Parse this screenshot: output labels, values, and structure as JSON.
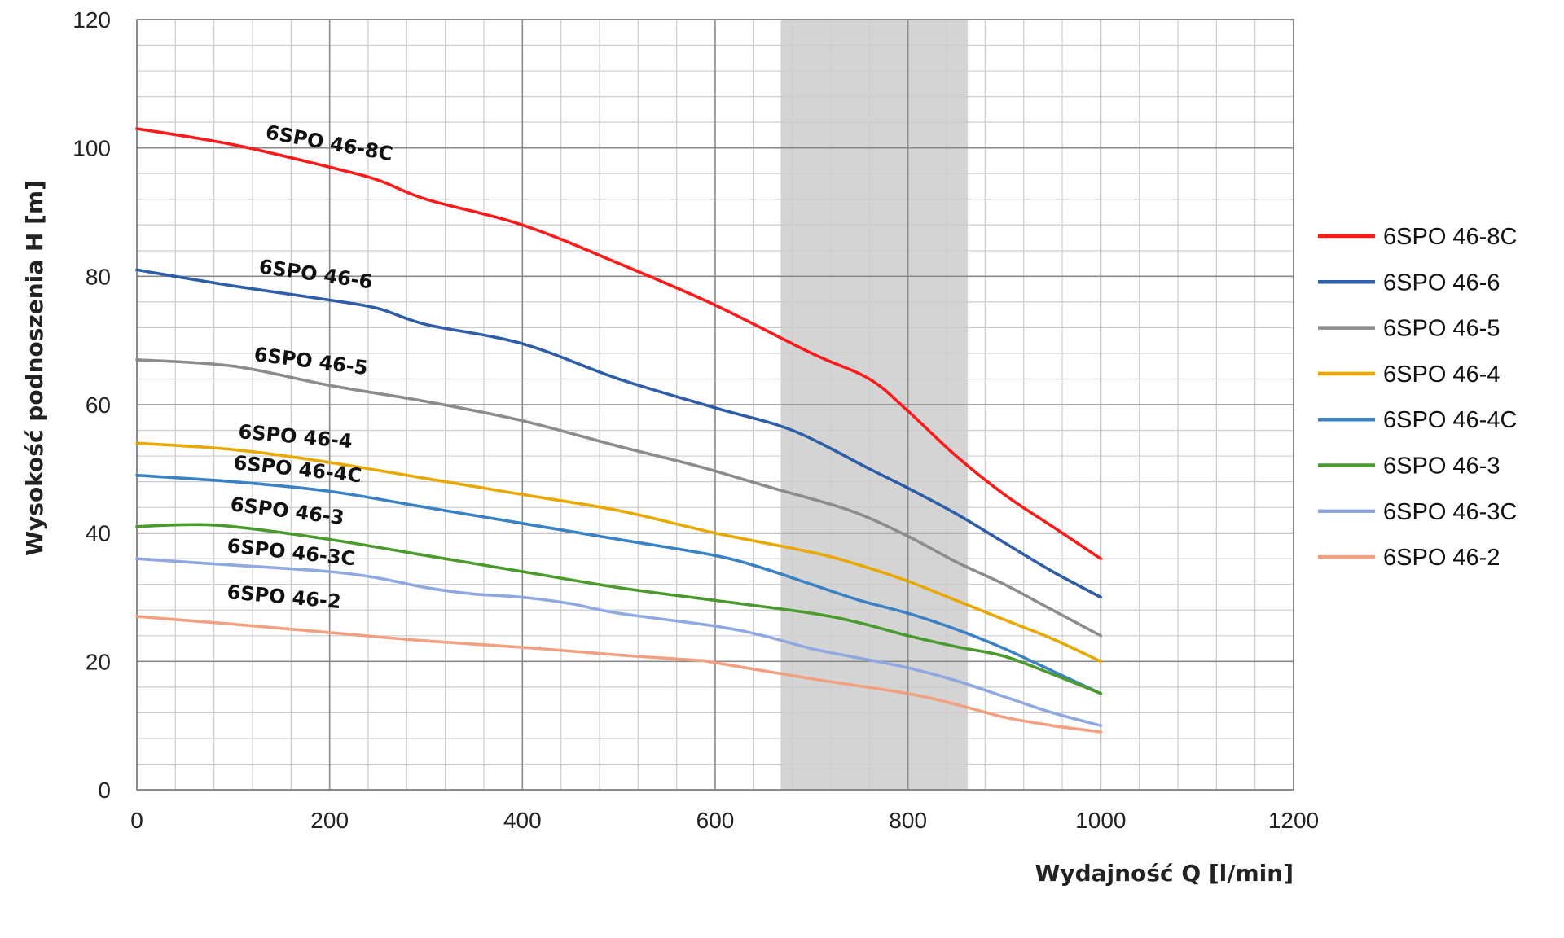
{
  "chart_data": {
    "type": "line",
    "title": "",
    "xlabel": "Wydajność Q [l/min]",
    "ylabel": "Wysokość podnoszenia H [m]",
    "xlim": [
      0,
      1200
    ],
    "ylim": [
      0,
      120
    ],
    "xticks": [
      "0",
      "200",
      "400",
      "600",
      "800",
      "1000",
      "1200"
    ],
    "yticks": [
      "0",
      "20",
      "40",
      "60",
      "80",
      "100",
      "120"
    ],
    "grid": true,
    "legend_position": "right",
    "shaded_region": {
      "x_from": 668,
      "x_to": 862,
      "color": "#d4d4d4"
    },
    "series": [
      {
        "name": "6SPO 46-8C",
        "color": "#ff1a1a",
        "label": "6SPO 46-8C",
        "x": [
          0,
          100,
          200,
          250,
          300,
          400,
          500,
          600,
          700,
          760,
          800,
          850,
          900,
          950,
          1000
        ],
        "y": [
          103,
          100.5,
          97,
          95,
          92,
          88,
          82,
          75.5,
          68,
          64,
          59,
          52,
          46,
          41,
          36
        ]
      },
      {
        "name": "6SPO 46-6",
        "color": "#2f5ea8",
        "label": "6SPO 46-6",
        "x": [
          0,
          100,
          200,
          250,
          300,
          400,
          500,
          600,
          680,
          760,
          800,
          850,
          900,
          950,
          1000
        ],
        "y": [
          81,
          78.5,
          76.3,
          75,
          72.5,
          69.5,
          64,
          59.5,
          56,
          50,
          47,
          43,
          38.5,
          34,
          30
        ]
      },
      {
        "name": "6SPO 46-5",
        "color": "#8c8c8c",
        "label": "6SPO 46-5",
        "x": [
          0,
          100,
          200,
          300,
          400,
          500,
          580,
          660,
          740,
          800,
          850,
          900,
          950,
          1000
        ],
        "y": [
          67,
          66,
          63,
          60.5,
          57.5,
          53.5,
          50.5,
          47,
          43.5,
          39.5,
          35.5,
          32,
          28,
          24
        ]
      },
      {
        "name": "6SPO 46-4",
        "color": "#e8a800",
        "label": "6SPO 46-4",
        "x": [
          0,
          100,
          200,
          300,
          400,
          500,
          600,
          700,
          750,
          800,
          850,
          900,
          950,
          1000
        ],
        "y": [
          54,
          53,
          51,
          48.5,
          46,
          43.5,
          40,
          37,
          35,
          32.5,
          29.5,
          26.5,
          23.5,
          20
        ]
      },
      {
        "name": "6SPO 46-4C",
        "color": "#3b82c4",
        "label": "6SPO 46-4C",
        "x": [
          0,
          100,
          200,
          300,
          400,
          500,
          600,
          650,
          700,
          750,
          800,
          850,
          900,
          950,
          1000
        ],
        "y": [
          49,
          48,
          46.5,
          44,
          41.5,
          39,
          36.5,
          34.5,
          32,
          29.5,
          27.5,
          25,
          22,
          18.5,
          15
        ]
      },
      {
        "name": "6SPO 46-3",
        "color": "#4a9a2e",
        "label": "6SPO 46-3",
        "x": [
          0,
          50,
          100,
          200,
          300,
          400,
          500,
          600,
          700,
          750,
          800,
          850,
          900,
          950,
          1000
        ],
        "y": [
          41,
          41.3,
          41,
          39,
          36.5,
          34,
          31.5,
          29.5,
          27.5,
          26,
          24,
          22.3,
          20.8,
          18,
          15
        ]
      },
      {
        "name": "6SPO 46-3C",
        "color": "#90a8e0",
        "label": "6SPO 46-3C",
        "x": [
          0,
          100,
          200,
          250,
          300,
          350,
          400,
          450,
          500,
          600,
          650,
          700,
          750,
          800,
          850,
          900,
          950,
          1000
        ],
        "y": [
          36,
          35,
          34,
          33,
          31.5,
          30.5,
          30,
          29,
          27.5,
          25.5,
          24,
          22,
          20.5,
          19,
          17,
          14.5,
          12,
          10
        ]
      },
      {
        "name": "6SPO 46-2",
        "color": "#f2a080",
        "label": "6SPO 46-2",
        "x": [
          0,
          100,
          200,
          300,
          400,
          500,
          580,
          600,
          700,
          800,
          850,
          900,
          950,
          1000
        ],
        "y": [
          27,
          25.8,
          24.5,
          23.2,
          22.2,
          21,
          20.2,
          19.8,
          17.3,
          15,
          13.3,
          11.3,
          10,
          9
        ]
      }
    ]
  }
}
